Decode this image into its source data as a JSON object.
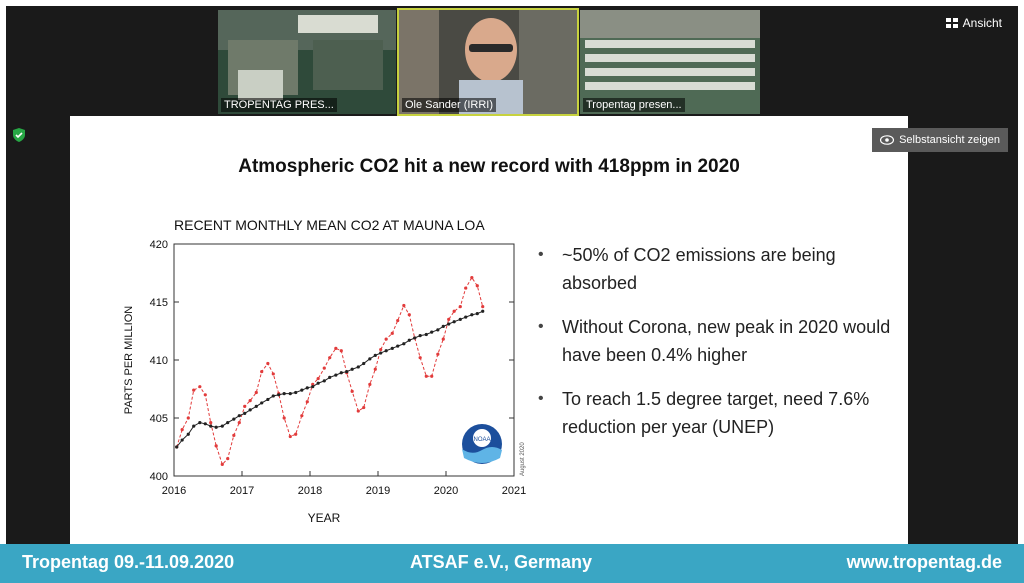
{
  "meeting": {
    "view_label": "Ansicht",
    "self_view_label": "Selbstansicht zeigen",
    "participants": [
      {
        "name": "TROPENTAG PRES..."
      },
      {
        "name": "Ole Sander (IRRI)"
      },
      {
        "name": "Tropentag presen..."
      }
    ]
  },
  "slide": {
    "title": "Atmospheric CO2 hit a new record with 418ppm in 2020",
    "bullets": [
      "~50% of CO2 emissions are being absorbed",
      "Without Corona, new peak in 2020 would have been 0.4% higher",
      "To reach 1.5 degree target, need 7.6% reduction per year (UNEP)"
    ]
  },
  "chart_data": {
    "type": "line",
    "title": "RECENT MONTHLY MEAN CO2 AT MAUNA LOA",
    "xlabel": "YEAR",
    "ylabel": "PARTS PER MILLION",
    "xlim": [
      2016,
      2021
    ],
    "ylim": [
      400,
      420
    ],
    "xticks": [
      "2016",
      "2017",
      "2018",
      "2019",
      "2020",
      "2021"
    ],
    "yticks": [
      "400",
      "405",
      "410",
      "415",
      "420"
    ],
    "side_note": "August 2020",
    "logo": "NOAA",
    "grid": false,
    "series": [
      {
        "color": "#e23b3b",
        "style": "dashed-dots",
        "x": [
          2016.04,
          2016.12,
          2016.21,
          2016.29,
          2016.38,
          2016.46,
          2016.54,
          2016.62,
          2016.71,
          2016.79,
          2016.88,
          2016.96,
          2017.04,
          2017.12,
          2017.21,
          2017.29,
          2017.38,
          2017.46,
          2017.54,
          2017.62,
          2017.71,
          2017.79,
          2017.88,
          2017.96,
          2018.04,
          2018.12,
          2018.21,
          2018.29,
          2018.38,
          2018.46,
          2018.54,
          2018.62,
          2018.71,
          2018.79,
          2018.88,
          2018.96,
          2019.04,
          2019.12,
          2019.21,
          2019.29,
          2019.38,
          2019.46,
          2019.54,
          2019.62,
          2019.71,
          2019.79,
          2019.88,
          2019.96,
          2020.04,
          2020.12,
          2020.21,
          2020.29,
          2020.38,
          2020.46,
          2020.54
        ],
        "y": [
          402.5,
          404.0,
          405.0,
          407.4,
          407.7,
          407.0,
          404.6,
          402.6,
          401.0,
          401.5,
          403.5,
          404.6,
          406.0,
          406.5,
          407.2,
          409.0,
          409.7,
          408.8,
          407.1,
          405.0,
          403.4,
          403.6,
          405.2,
          406.4,
          407.9,
          408.4,
          409.3,
          410.2,
          411.0,
          410.8,
          408.9,
          407.3,
          405.6,
          405.9,
          407.9,
          409.2,
          410.9,
          411.8,
          412.3,
          413.4,
          414.7,
          413.9,
          411.9,
          410.2,
          408.6,
          408.6,
          410.5,
          411.8,
          413.5,
          414.2,
          414.6,
          416.2,
          417.1,
          416.4,
          414.6
        ]
      },
      {
        "color": "#222222",
        "style": "line-dots",
        "x": [
          2016.04,
          2016.12,
          2016.21,
          2016.29,
          2016.38,
          2016.46,
          2016.54,
          2016.62,
          2016.71,
          2016.79,
          2016.88,
          2016.96,
          2017.04,
          2017.12,
          2017.21,
          2017.29,
          2017.38,
          2017.46,
          2017.54,
          2017.62,
          2017.71,
          2017.79,
          2017.88,
          2017.96,
          2018.04,
          2018.12,
          2018.21,
          2018.29,
          2018.38,
          2018.46,
          2018.54,
          2018.62,
          2018.71,
          2018.79,
          2018.88,
          2018.96,
          2019.04,
          2019.12,
          2019.21,
          2019.29,
          2019.38,
          2019.46,
          2019.54,
          2019.62,
          2019.71,
          2019.79,
          2019.88,
          2019.96,
          2020.04,
          2020.12,
          2020.21,
          2020.29,
          2020.38,
          2020.46,
          2020.54
        ],
        "y": [
          402.5,
          403.1,
          403.6,
          404.3,
          404.6,
          404.5,
          404.3,
          404.2,
          404.3,
          404.6,
          404.9,
          405.2,
          405.4,
          405.7,
          406.0,
          406.3,
          406.6,
          406.9,
          407.0,
          407.1,
          407.1,
          407.2,
          407.4,
          407.6,
          407.7,
          408.0,
          408.2,
          408.5,
          408.7,
          408.9,
          409.0,
          409.2,
          409.4,
          409.7,
          410.1,
          410.4,
          410.6,
          410.8,
          411.0,
          411.2,
          411.4,
          411.7,
          411.9,
          412.1,
          412.2,
          412.4,
          412.6,
          412.9,
          413.1,
          413.3,
          413.5,
          413.7,
          413.9,
          414.0,
          414.2
        ]
      }
    ]
  },
  "footer": {
    "left": "Tropentag 09.-11.09.2020",
    "center": "ATSAF e.V., Germany",
    "right": "www.tropentag.de"
  }
}
